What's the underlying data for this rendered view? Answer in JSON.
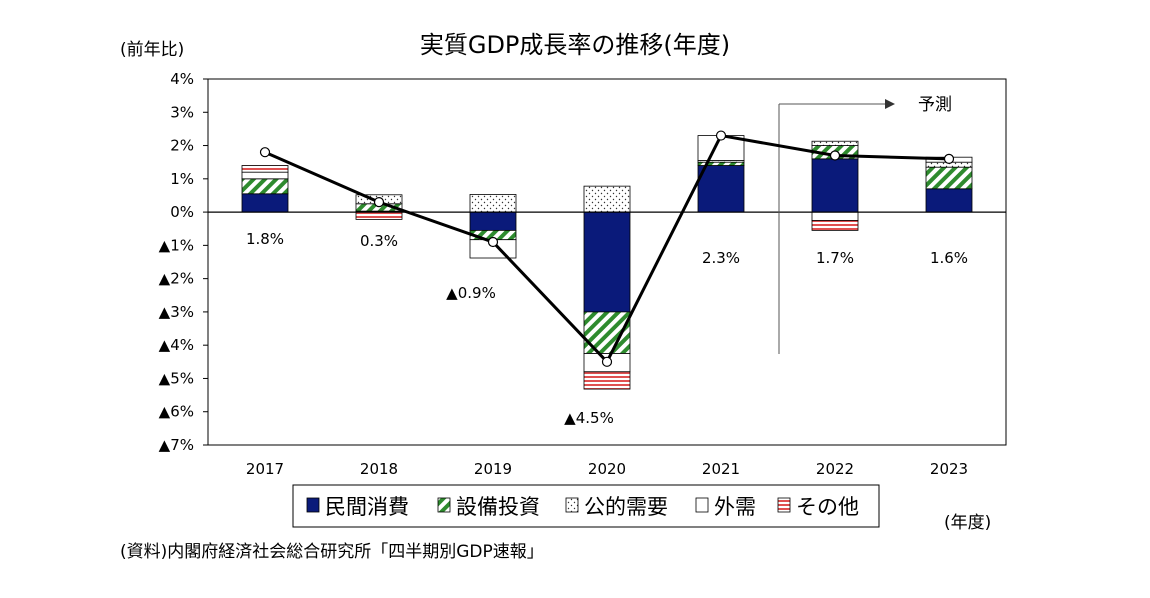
{
  "chart_data": {
    "type": "bar",
    "title": "実質GDP成長率の推移(年度)",
    "ylabel": "(前年比)",
    "xlabel": "(年度)",
    "ylim": [
      -7,
      4
    ],
    "y_ticks": [
      {
        "value": 4,
        "label": "4%"
      },
      {
        "value": 3,
        "label": "3%"
      },
      {
        "value": 2,
        "label": "2%"
      },
      {
        "value": 1,
        "label": "1%"
      },
      {
        "value": 0,
        "label": "0%"
      },
      {
        "value": -1,
        "label": "▲1%"
      },
      {
        "value": -2,
        "label": "▲2%"
      },
      {
        "value": -3,
        "label": "▲3%"
      },
      {
        "value": -4,
        "label": "▲4%"
      },
      {
        "value": -5,
        "label": "▲5%"
      },
      {
        "value": -6,
        "label": "▲6%"
      },
      {
        "value": -7,
        "label": "▲7%"
      }
    ],
    "categories": [
      "2017",
      "2018",
      "2019",
      "2020",
      "2021",
      "2022",
      "2023"
    ],
    "series": [
      {
        "name": "民間消費",
        "color": "#0a1a7a",
        "pattern": "solid",
        "values": [
          0.55,
          0.03,
          -0.55,
          -3.0,
          1.4,
          1.6,
          0.7
        ]
      },
      {
        "name": "設備投資",
        "color": "#2e8b2e",
        "pattern": "diagonal",
        "values": [
          0.45,
          0.22,
          -0.28,
          -1.25,
          0.1,
          0.4,
          0.65
        ]
      },
      {
        "name": "公的需要",
        "color": "#444444",
        "pattern": "dots",
        "values": [
          0.0,
          0.27,
          0.53,
          0.78,
          0.05,
          0.13,
          0.15
        ]
      },
      {
        "name": "外需",
        "color": "#000000",
        "pattern": "white",
        "values": [
          0.2,
          0.0,
          -0.55,
          -0.55,
          0.75,
          -0.25,
          0.15
        ]
      },
      {
        "name": "その他",
        "color": "#e05050",
        "pattern": "horizontal",
        "values": [
          0.2,
          -0.22,
          0.0,
          -0.52,
          0.0,
          -0.3,
          0.0
        ]
      }
    ],
    "total": {
      "values": [
        1.8,
        0.3,
        -0.9,
        -4.5,
        2.3,
        1.7,
        1.6
      ],
      "labels": [
        "1.8%",
        "0.3%",
        "▲0.9%",
        "▲4.5%",
        "2.3%",
        "1.7%",
        "1.6%"
      ]
    },
    "forecast_label": "予測",
    "legend_position": "bottom",
    "grid": false
  },
  "source_note": "(資料)内閣府経済社会総合研究所「四半期別GDP速報」"
}
